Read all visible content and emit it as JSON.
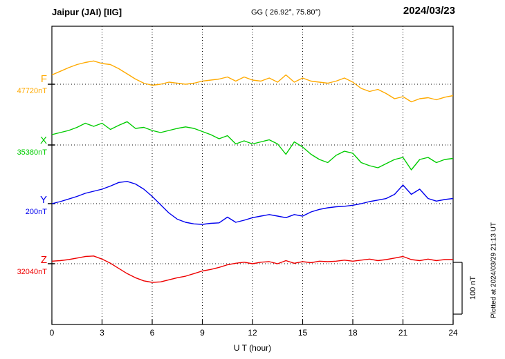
{
  "header": {
    "title": "Jaipur (JAI)  [IIG]",
    "coords": "GG ( 26.92°, 75.80°)",
    "date": "2024/03/23"
  },
  "annotations": {
    "plotted_at": "Plotted at 2024/03/29 21:13 UT",
    "scale_label": "100 nT"
  },
  "chart_data": {
    "type": "line",
    "title": "Jaipur (JAI) [IIG] magnetogram",
    "xlabel": "U T (hour)",
    "xlim": [
      0,
      24
    ],
    "x_ticks": [
      0,
      3,
      6,
      9,
      12,
      15,
      18,
      21,
      24
    ],
    "x_step_hours": 0.5,
    "grid": "dotted vertical at 3h intervals, dotted horizontal at each series baseline",
    "scale_bar_nT": 100,
    "series": [
      {
        "name": "F",
        "baseline_label": "47720nT",
        "baseline_nT": 47720,
        "color": "#FFAA00",
        "values": [
          18,
          25,
          32,
          38,
          42,
          45,
          40,
          38,
          30,
          20,
          10,
          2,
          -2,
          0,
          4,
          2,
          0,
          2,
          6,
          8,
          10,
          14,
          6,
          14,
          8,
          6,
          12,
          4,
          18,
          4,
          12,
          6,
          4,
          2,
          6,
          12,
          4,
          -8,
          -14,
          -10,
          -18,
          -28,
          -24,
          -34,
          -28,
          -26,
          -30,
          -25,
          -22
        ]
      },
      {
        "name": "X",
        "baseline_label": "35380nT",
        "baseline_nT": 35380,
        "color": "#00CC00",
        "values": [
          20,
          24,
          28,
          34,
          42,
          36,
          42,
          30,
          38,
          45,
          32,
          34,
          28,
          24,
          28,
          32,
          35,
          32,
          26,
          20,
          12,
          18,
          2,
          8,
          2,
          6,
          10,
          2,
          -18,
          6,
          -4,
          -18,
          -28,
          -34,
          -20,
          -12,
          -16,
          -34,
          -40,
          -44,
          -36,
          -28,
          -24,
          -48,
          -28,
          -24,
          -34,
          -28,
          -26
        ]
      },
      {
        "name": "Y",
        "baseline_label": "200nT",
        "baseline_nT": 200,
        "color": "#0000EE",
        "values": [
          0,
          4,
          9,
          14,
          20,
          24,
          28,
          34,
          41,
          43,
          38,
          28,
          14,
          -2,
          -18,
          -30,
          -36,
          -39,
          -40,
          -38,
          -37,
          -26,
          -36,
          -32,
          -27,
          -24,
          -21,
          -24,
          -27,
          -21,
          -24,
          -16,
          -11,
          -8,
          -6,
          -5,
          -3,
          0,
          4,
          7,
          10,
          18,
          36,
          18,
          28,
          10,
          5,
          8,
          10
        ]
      },
      {
        "name": "Z",
        "baseline_label": "32040nT",
        "baseline_nT": 32040,
        "color": "#EE0000",
        "values": [
          5,
          6,
          8,
          11,
          14,
          15,
          9,
          1,
          -9,
          -19,
          -27,
          -33,
          -36,
          -35,
          -31,
          -27,
          -24,
          -19,
          -14,
          -11,
          -7,
          -2,
          1,
          3,
          0,
          3,
          4,
          0,
          6,
          1,
          4,
          2,
          5,
          4,
          5,
          7,
          5,
          7,
          9,
          6,
          8,
          11,
          14,
          8,
          6,
          9,
          6,
          8,
          8
        ]
      }
    ]
  }
}
